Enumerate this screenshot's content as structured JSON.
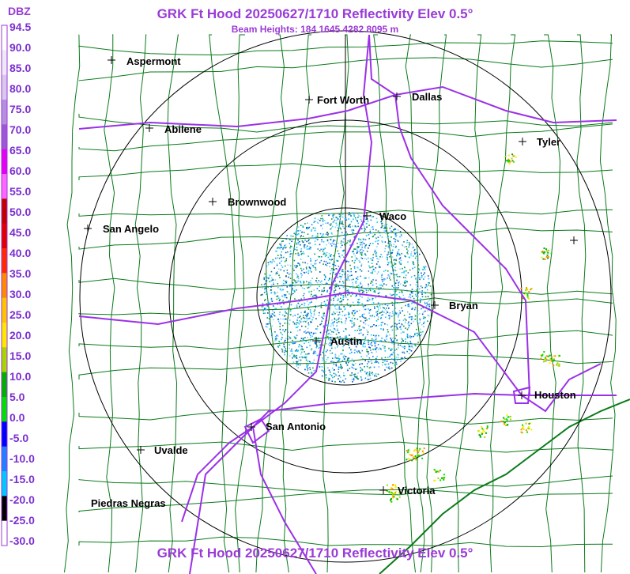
{
  "header": {
    "title": "GRK Ft Hood 20250627/1710 Reflectivity Elev 0.5°",
    "subtitle": "Beam Heights: 184 1645 4282 8095 m",
    "footer_title": "GRK Ft Hood 20250627/1710 Reflectivity Elev 0.5°"
  },
  "legend": {
    "unit": "DBZ",
    "ticks": [
      "94.5",
      "90.0",
      "85.0",
      "80.0",
      "75.0",
      "70.0",
      "65.0",
      "60.0",
      "55.0",
      "50.0",
      "45.0",
      "40.0",
      "35.0",
      "30.0",
      "25.0",
      "20.0",
      "15.0",
      "10.0",
      "5.0",
      "0.0",
      "-5.0",
      "-10.0",
      "-15.0",
      "-20.0",
      "-25.0",
      "-30.0"
    ],
    "colors": [
      "#ffffff",
      "#efe8f7",
      "#d8c8ee",
      "#b48fe0",
      "#9e57d4",
      "#e400f0",
      "#ff66ff",
      "#c00000",
      "#e00000",
      "#ff2a00",
      "#ff8a00",
      "#ffc400",
      "#ffe800",
      "#a8d400",
      "#00b000",
      "#00e000",
      "#0000ff",
      "#2080ff",
      "#00c8ff",
      "#000000",
      "#ffffff"
    ]
  },
  "cities": [
    {
      "name": "Aspermont"
    },
    {
      "name": "Fort Worth"
    },
    {
      "name": "Dallas"
    },
    {
      "name": "Abilene"
    },
    {
      "name": "Tyler"
    },
    {
      "name": "Brownwood"
    },
    {
      "name": "Waco"
    },
    {
      "name": "San Angelo"
    },
    {
      "name": "Bryan"
    },
    {
      "name": "Austin"
    },
    {
      "name": "Houston"
    },
    {
      "name": "San Antonio"
    },
    {
      "name": "Uvalde"
    },
    {
      "name": "Victoria"
    },
    {
      "name": "Piedras Negras"
    }
  ]
}
